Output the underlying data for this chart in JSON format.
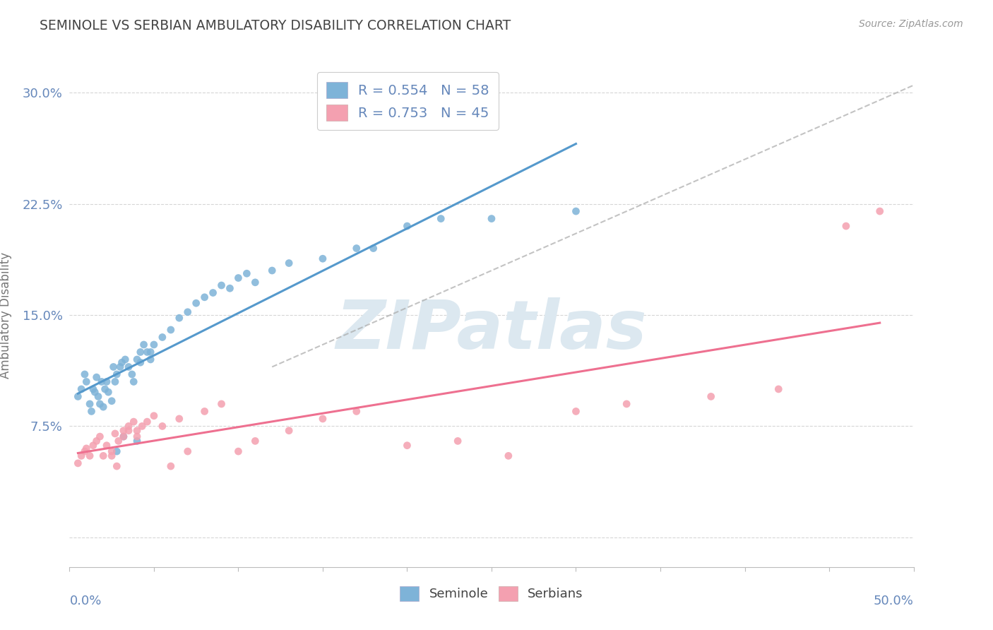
{
  "title": "SEMINOLE VS SERBIAN AMBULATORY DISABILITY CORRELATION CHART",
  "source": "Source: ZipAtlas.com",
  "ylabel": "Ambulatory Disability",
  "legend_seminole": "Seminole",
  "legend_serbians": "Serbians",
  "R_seminole": "0.554",
  "N_seminole": "58",
  "R_serbians": "0.753",
  "N_serbians": "45",
  "color_seminole": "#7EB3D8",
  "color_serbians": "#F4A0B0",
  "color_trend_seminole": "#5599CC",
  "color_trend_serbians": "#EE7090",
  "yticks": [
    0.0,
    0.075,
    0.15,
    0.225,
    0.3
  ],
  "ytick_labels": [
    "",
    "7.5%",
    "15.0%",
    "22.5%",
    "30.0%"
  ],
  "xlim": [
    0.0,
    0.5
  ],
  "ylim": [
    -0.02,
    0.32
  ],
  "background_color": "#ffffff",
  "grid_color": "#cccccc",
  "title_color": "#444444",
  "axis_color": "#6688BB",
  "watermark_color": "#dce8f0",
  "seminole_x": [
    0.005,
    0.007,
    0.009,
    0.01,
    0.012,
    0.013,
    0.014,
    0.015,
    0.016,
    0.017,
    0.018,
    0.019,
    0.02,
    0.021,
    0.022,
    0.023,
    0.025,
    0.026,
    0.027,
    0.028,
    0.03,
    0.031,
    0.033,
    0.035,
    0.037,
    0.04,
    0.042,
    0.044,
    0.046,
    0.048,
    0.05,
    0.055,
    0.06,
    0.065,
    0.07,
    0.075,
    0.08,
    0.085,
    0.09,
    0.095,
    0.1,
    0.105,
    0.11,
    0.12,
    0.13,
    0.15,
    0.17,
    0.2,
    0.25,
    0.3,
    0.18,
    0.22,
    0.028,
    0.032,
    0.04,
    0.038,
    0.042,
    0.048
  ],
  "seminole_y": [
    0.095,
    0.1,
    0.11,
    0.105,
    0.09,
    0.085,
    0.1,
    0.098,
    0.108,
    0.095,
    0.09,
    0.105,
    0.088,
    0.1,
    0.105,
    0.098,
    0.092,
    0.115,
    0.105,
    0.11,
    0.115,
    0.118,
    0.12,
    0.115,
    0.11,
    0.12,
    0.125,
    0.13,
    0.125,
    0.12,
    0.13,
    0.135,
    0.14,
    0.148,
    0.152,
    0.158,
    0.162,
    0.165,
    0.17,
    0.168,
    0.175,
    0.178,
    0.172,
    0.18,
    0.185,
    0.188,
    0.195,
    0.21,
    0.215,
    0.22,
    0.195,
    0.215,
    0.058,
    0.068,
    0.065,
    0.105,
    0.118,
    0.125
  ],
  "serbians_x": [
    0.005,
    0.007,
    0.009,
    0.01,
    0.012,
    0.014,
    0.016,
    0.018,
    0.02,
    0.022,
    0.025,
    0.027,
    0.029,
    0.032,
    0.035,
    0.038,
    0.04,
    0.043,
    0.046,
    0.05,
    0.055,
    0.06,
    0.065,
    0.07,
    0.08,
    0.09,
    0.1,
    0.11,
    0.13,
    0.15,
    0.17,
    0.2,
    0.23,
    0.26,
    0.3,
    0.33,
    0.38,
    0.42,
    0.46,
    0.48,
    0.025,
    0.028,
    0.032,
    0.035,
    0.04
  ],
  "serbians_y": [
    0.05,
    0.055,
    0.058,
    0.06,
    0.055,
    0.062,
    0.065,
    0.068,
    0.055,
    0.062,
    0.058,
    0.07,
    0.065,
    0.072,
    0.075,
    0.078,
    0.072,
    0.075,
    0.078,
    0.082,
    0.075,
    0.048,
    0.08,
    0.058,
    0.085,
    0.09,
    0.058,
    0.065,
    0.072,
    0.08,
    0.085,
    0.062,
    0.065,
    0.055,
    0.085,
    0.09,
    0.095,
    0.1,
    0.21,
    0.22,
    0.055,
    0.048,
    0.068,
    0.072,
    0.068
  ]
}
